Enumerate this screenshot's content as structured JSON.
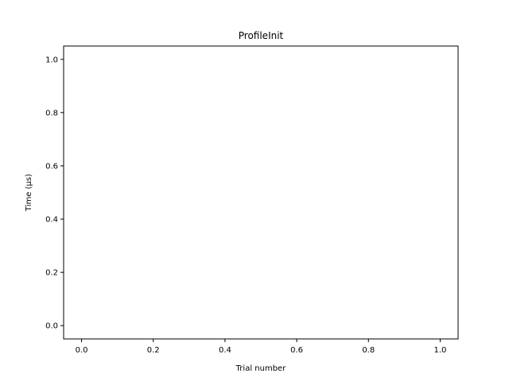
{
  "chart_data": {
    "type": "line",
    "title": "ProfileInit",
    "xlabel": "Trial number",
    "ylabel": "Time (µs)",
    "xlim": [
      -0.05,
      1.05
    ],
    "ylim": [
      -0.05,
      1.05
    ],
    "xticks": [
      0.0,
      0.2,
      0.4,
      0.6,
      0.8,
      1.0
    ],
    "yticks": [
      0.0,
      0.2,
      0.4,
      0.6,
      0.8,
      1.0
    ],
    "xtick_labels": [
      "0.0",
      "0.2",
      "0.4",
      "0.6",
      "0.8",
      "1.0"
    ],
    "ytick_labels": [
      "0.0",
      "0.2",
      "0.4",
      "0.6",
      "0.8",
      "1.0"
    ],
    "series": [],
    "grid": false
  }
}
